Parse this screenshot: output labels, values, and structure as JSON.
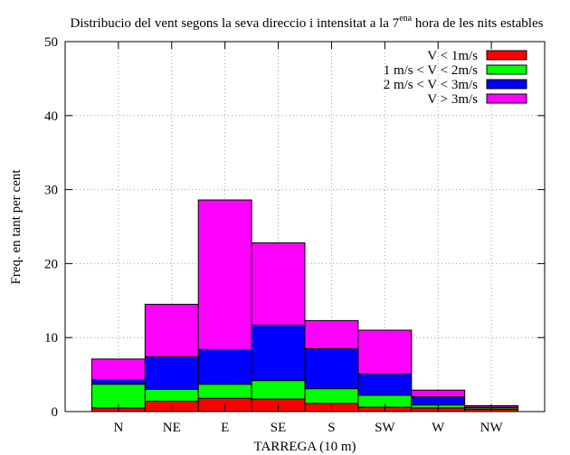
{
  "chart_data": {
    "type": "bar",
    "stacked": true,
    "title": {
      "main": "Distribucio del vent segons la seva direccio i intensitat a la 7",
      "superscript": "ena",
      "tail": " hora de les nits estables"
    },
    "xlabel": "TARREGA (10 m)",
    "ylabel": "Freq. en tant per cent",
    "ylim": [
      0,
      50
    ],
    "yticks": [
      0,
      10,
      20,
      30,
      40,
      50
    ],
    "grid": true,
    "legend_position": "top-right",
    "categories": [
      "N",
      "NE",
      "E",
      "SE",
      "S",
      "SW",
      "W",
      "NW"
    ],
    "series": [
      {
        "name": "V < 1m/s",
        "color": "#ff0000",
        "values": [
          0.5,
          1.4,
          1.8,
          1.7,
          1.1,
          0.6,
          0.5,
          0.3
        ]
      },
      {
        "name": "1 m/s < V < 2m/s",
        "color": "#00ff00",
        "values": [
          3.2,
          1.6,
          1.9,
          2.5,
          2.0,
          1.6,
          0.4,
          0.2
        ]
      },
      {
        "name": "2 m/s < V < 3m/s",
        "color": "#0000ff",
        "values": [
          0.6,
          4.4,
          4.7,
          7.5,
          5.4,
          2.9,
          1.1,
          0.1
        ]
      },
      {
        "name": "V > 3m/s",
        "color": "#ff00ff",
        "values": [
          2.8,
          7.1,
          20.2,
          11.1,
          3.8,
          5.9,
          0.9,
          0.2
        ]
      }
    ]
  }
}
